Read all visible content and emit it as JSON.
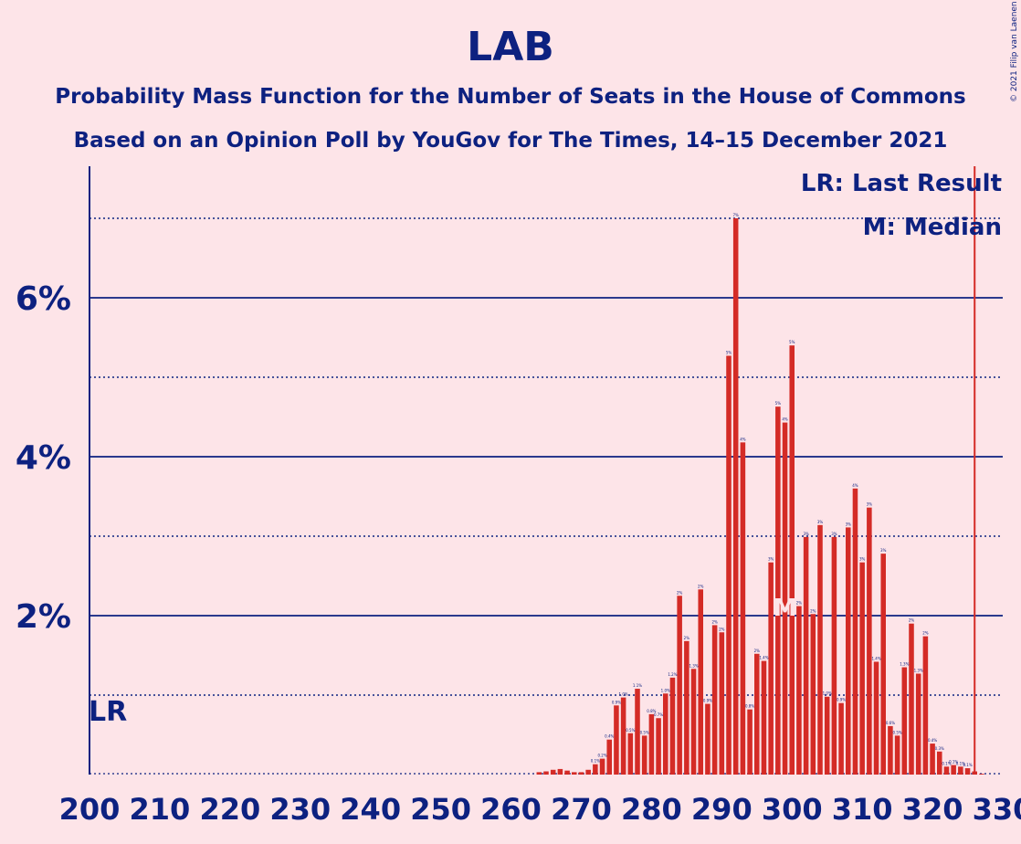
{
  "chart_data": {
    "type": "bar",
    "title": "LAB",
    "subtitle1": "Probability Mass Function for the Number of Seats in the House of Commons",
    "subtitle2": "Based on an Opinion Poll by YouGov for The Times, 14–15 December 2021",
    "copyright": "© 2021 Filip van Laenen",
    "legend": [
      "LR: Last Result",
      "M: Median"
    ],
    "last_result_label": "LR",
    "median_label": "M",
    "last_result_seat": 326,
    "median_seat": 299,
    "xlim": [
      200,
      330
    ],
    "ylim": [
      0,
      7.6
    ],
    "x_ticks": [
      "200",
      "210",
      "220",
      "230",
      "240",
      "250",
      "260",
      "270",
      "280",
      "290",
      "300",
      "310",
      "320",
      "330"
    ],
    "y_ticks": [
      "2%",
      "4%",
      "6%"
    ],
    "grid": "solid lines at 2%, 4%, 6%; dotted lines at 1%, 3%, 5%, 7%",
    "bar_color": "#d42b26",
    "axis_color": "#0d2180",
    "lr_line_color": "#d42b26",
    "x": [
      200,
      201,
      202,
      203,
      204,
      205,
      206,
      207,
      208,
      209,
      210,
      211,
      212,
      213,
      214,
      215,
      216,
      217,
      218,
      219,
      220,
      221,
      222,
      223,
      224,
      225,
      226,
      227,
      228,
      229,
      230,
      231,
      232,
      233,
      234,
      235,
      236,
      237,
      238,
      239,
      240,
      241,
      242,
      243,
      244,
      245,
      246,
      247,
      248,
      249,
      250,
      251,
      252,
      253,
      254,
      255,
      256,
      257,
      258,
      259,
      260,
      261,
      262,
      263,
      264,
      265,
      266,
      267,
      268,
      269,
      270,
      271,
      272,
      273,
      274,
      275,
      276,
      277,
      278,
      279,
      280,
      281,
      282,
      283,
      284,
      285,
      286,
      287,
      288,
      289,
      290,
      291,
      292,
      293,
      294,
      295,
      296,
      297,
      298,
      299,
      300,
      301,
      302,
      303,
      304,
      305,
      306,
      307,
      308,
      309,
      310,
      311,
      312,
      313,
      314,
      315,
      316,
      317,
      318,
      319,
      320,
      321,
      322,
      323,
      324,
      325,
      326,
      327,
      328,
      329,
      330
    ],
    "values": [
      0,
      0,
      0,
      0,
      0,
      0,
      0,
      0,
      0,
      0,
      0,
      0,
      0,
      0,
      0,
      0,
      0,
      0,
      0,
      0,
      0,
      0,
      0,
      0,
      0,
      0,
      0,
      0,
      0,
      0,
      0,
      0,
      0,
      0,
      0,
      0,
      0,
      0,
      0,
      0,
      0,
      0,
      0,
      0,
      0,
      0,
      0,
      0,
      0,
      0,
      0,
      0,
      0,
      0,
      0,
      0,
      0,
      0,
      0,
      0,
      0,
      0,
      0,
      0,
      0.03,
      0.04,
      0.06,
      0.07,
      0.05,
      0.03,
      0.03,
      0.06,
      0.13,
      0.2,
      0.44,
      0.87,
      0.97,
      0.52,
      1.08,
      0.49,
      0.76,
      0.71,
      1.02,
      1.22,
      2.25,
      1.68,
      1.33,
      2.33,
      0.89,
      1.88,
      1.79,
      5.27,
      7.0,
      4.18,
      0.82,
      1.52,
      1.43,
      2.67,
      4.63,
      4.43,
      5.4,
      2.12,
      2.99,
      2.02,
      3.14,
      0.98,
      2.99,
      0.9,
      3.11,
      3.6,
      2.67,
      3.36,
      1.42,
      2.78,
      0.61,
      0.49,
      1.35,
      1.9,
      1.27,
      1.74,
      0.39,
      0.29,
      0.1,
      0.12,
      0.1,
      0.08,
      0.04,
      0.01,
      0,
      0,
      0
    ],
    "data_labels": {
      "272": "0.1%",
      "273": "0.2%",
      "274": "0.4%",
      "275": "0.9%",
      "276": "1.0%",
      "277": "0.5%",
      "278": "1.1%",
      "279": "0.5%",
      "280": "0.8%",
      "281": "0.7%",
      "282": "1.0%",
      "283": "1.2%",
      "284": "2%",
      "285": "2%",
      "286": "1.3%",
      "287": "2%",
      "288": "0.9%",
      "289": "2%",
      "290": "2%",
      "291": "5%",
      "292": "7%",
      "293": "4%",
      "294": "0.8%",
      "295": "2%",
      "296": "1.4%",
      "297": "3%",
      "298": "5%",
      "299": "4%",
      "300": "5%",
      "301": "2%",
      "302": "3%",
      "303": "2%",
      "304": "3%",
      "305": "1.0%",
      "306": "3%",
      "307": "0.9%",
      "308": "3%",
      "309": "4%",
      "310": "3%",
      "311": "3%",
      "312": "1.4%",
      "313": "3%",
      "314": "0.6%",
      "315": "0.5%",
      "316": "1.3%",
      "317": "2%",
      "318": "1.3%",
      "319": "2%",
      "320": "0.4%",
      "321": "0.3%",
      "322": "0.1%",
      "323": "0.1%",
      "324": "0.1%",
      "325": "0.1%"
    }
  }
}
